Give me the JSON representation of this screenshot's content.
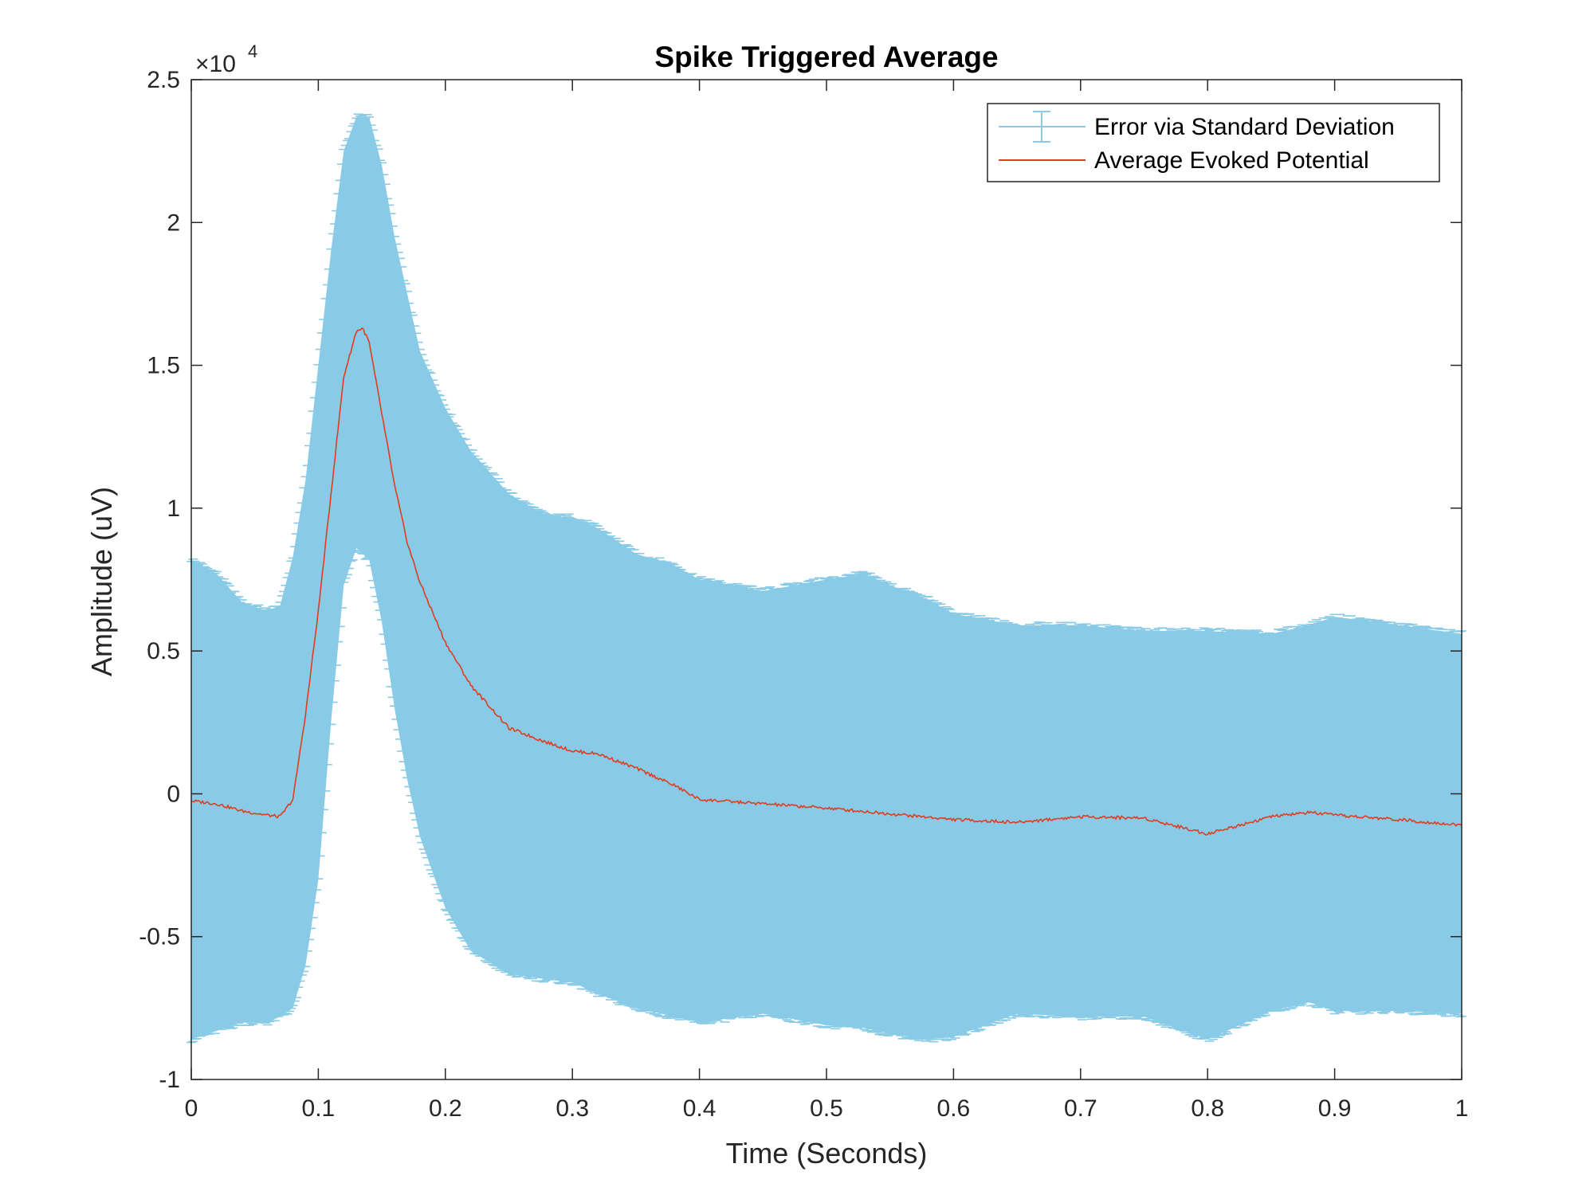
{
  "chart_data": {
    "type": "line",
    "title": "Spike Triggered Average",
    "xlabel": "Time (Seconds)",
    "ylabel": "Amplitude (uV)",
    "y_exponent_label": "×10",
    "y_exponent_power": "4",
    "xlim": [
      0,
      1
    ],
    "ylim": [
      -10000,
      25000
    ],
    "xticks": [
      {
        "value": 0,
        "label": "0"
      },
      {
        "value": 0.1,
        "label": "0.1"
      },
      {
        "value": 0.2,
        "label": "0.2"
      },
      {
        "value": 0.3,
        "label": "0.3"
      },
      {
        "value": 0.4,
        "label": "0.4"
      },
      {
        "value": 0.5,
        "label": "0.5"
      },
      {
        "value": 0.6,
        "label": "0.6"
      },
      {
        "value": 0.7,
        "label": "0.7"
      },
      {
        "value": 0.8,
        "label": "0.8"
      },
      {
        "value": 0.9,
        "label": "0.9"
      },
      {
        "value": 1,
        "label": "1"
      }
    ],
    "yticks": [
      {
        "value": 25000,
        "label": "2.5"
      },
      {
        "value": 20000,
        "label": "2"
      },
      {
        "value": 15000,
        "label": "1.5"
      },
      {
        "value": 10000,
        "label": "1"
      },
      {
        "value": 5000,
        "label": "0.5"
      },
      {
        "value": 0,
        "label": "0"
      },
      {
        "value": -5000,
        "label": "-0.5"
      },
      {
        "value": -10000,
        "label": "-1"
      }
    ],
    "grid": false,
    "legend_position": "top-right",
    "series": [
      {
        "name": "Error via Standard Deviation",
        "kind": "errorbar",
        "color": "#89cbe6",
        "x": [
          0,
          0.02,
          0.04,
          0.06,
          0.07,
          0.08,
          0.09,
          0.1,
          0.11,
          0.12,
          0.13,
          0.14,
          0.15,
          0.16,
          0.17,
          0.18,
          0.2,
          0.22,
          0.25,
          0.28,
          0.3,
          0.32,
          0.35,
          0.38,
          0.4,
          0.45,
          0.5,
          0.53,
          0.55,
          0.58,
          0.6,
          0.65,
          0.7,
          0.75,
          0.8,
          0.85,
          0.88,
          0.9,
          0.95,
          1.0
        ],
        "upper": [
          8200,
          7700,
          6700,
          6400,
          6600,
          8300,
          11000,
          15000,
          19000,
          22500,
          23700,
          23700,
          22000,
          19500,
          17500,
          15500,
          13500,
          12000,
          10500,
          9700,
          9700,
          9300,
          8400,
          8000,
          7500,
          7100,
          7500,
          7700,
          7300,
          6800,
          6300,
          5900,
          5900,
          5700,
          5700,
          5600,
          5900,
          6200,
          5900,
          5600
        ],
        "lower": [
          -8600,
          -8300,
          -8000,
          -8000,
          -7800,
          -7500,
          -6000,
          -3000,
          2500,
          7300,
          8600,
          8200,
          6000,
          3000,
          500,
          -1500,
          -4000,
          -5500,
          -6300,
          -6500,
          -6600,
          -7000,
          -7500,
          -7800,
          -8000,
          -7700,
          -8100,
          -8200,
          -8400,
          -8600,
          -8500,
          -7700,
          -7800,
          -7800,
          -8600,
          -7600,
          -7300,
          -7600,
          -7600,
          -7700
        ]
      },
      {
        "name": "Average Evoked Potential",
        "kind": "line",
        "color": "#e03c1e",
        "x": [
          0,
          0.02,
          0.04,
          0.06,
          0.07,
          0.08,
          0.09,
          0.1,
          0.11,
          0.12,
          0.13,
          0.135,
          0.14,
          0.15,
          0.16,
          0.17,
          0.18,
          0.2,
          0.22,
          0.25,
          0.28,
          0.3,
          0.32,
          0.35,
          0.38,
          0.4,
          0.45,
          0.5,
          0.55,
          0.6,
          0.65,
          0.7,
          0.75,
          0.8,
          0.85,
          0.88,
          0.9,
          0.95,
          1.0
        ],
        "y": [
          -250,
          -350,
          -600,
          -750,
          -800,
          -200,
          2800,
          6400,
          10500,
          14600,
          16200,
          16300,
          15800,
          13300,
          10800,
          8800,
          7400,
          5300,
          3800,
          2300,
          1800,
          1500,
          1400,
          900,
          300,
          -200,
          -350,
          -500,
          -700,
          -900,
          -1000,
          -800,
          -850,
          -1400,
          -800,
          -650,
          -750,
          -900,
          -1100
        ]
      }
    ]
  }
}
